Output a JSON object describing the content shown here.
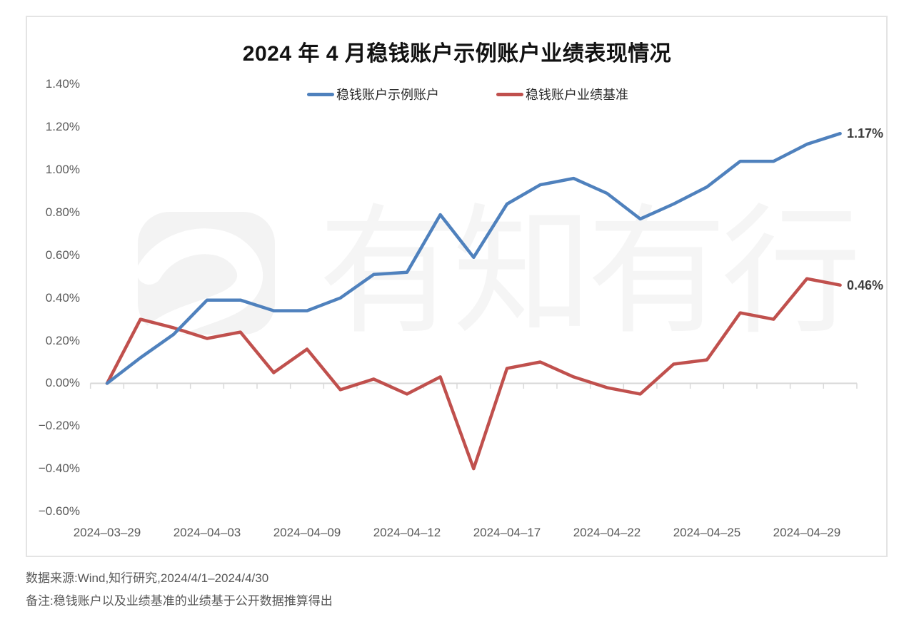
{
  "chart_data": {
    "type": "line",
    "title": "2024 年 4 月稳钱账户示例账户业绩表现情况",
    "xlabel": "",
    "ylabel": "",
    "x": [
      "2024-03-29",
      "2024-04-01",
      "2024-04-02",
      "2024-04-03",
      "2024-04-07",
      "2024-04-08",
      "2024-04-09",
      "2024-04-10",
      "2024-04-11",
      "2024-04-12",
      "2024-04-15",
      "2024-04-16",
      "2024-04-17",
      "2024-04-18",
      "2024-04-19",
      "2024-04-22",
      "2024-04-23",
      "2024-04-24",
      "2024-04-25",
      "2024-04-26",
      "2024-04-28",
      "2024-04-29",
      "2024-04-30"
    ],
    "series": [
      {
        "name": "稳钱账户示例账户",
        "color": "#4f81bd",
        "end_label": "1.17%",
        "values": [
          0.0,
          0.12,
          0.23,
          0.39,
          0.39,
          0.34,
          0.34,
          0.4,
          0.51,
          0.52,
          0.79,
          0.59,
          0.84,
          0.93,
          0.96,
          0.89,
          0.77,
          0.84,
          0.92,
          1.04,
          1.04,
          1.12,
          1.17
        ]
      },
      {
        "name": "稳钱账户业绩基准",
        "color": "#c0504d",
        "end_label": "0.46%",
        "values": [
          0.0,
          0.3,
          0.26,
          0.21,
          0.24,
          0.05,
          0.16,
          -0.03,
          0.02,
          -0.05,
          0.03,
          -0.4,
          0.07,
          0.1,
          0.03,
          -0.02,
          -0.05,
          0.09,
          0.11,
          0.33,
          0.3,
          0.49,
          0.46
        ]
      }
    ],
    "xticks": [
      {
        "label": "2024–03–29",
        "index": 0
      },
      {
        "label": "2024–04–03",
        "index": 3
      },
      {
        "label": "2024–04–09",
        "index": 6
      },
      {
        "label": "2024–04–12",
        "index": 9
      },
      {
        "label": "2024–04–17",
        "index": 12
      },
      {
        "label": "2024–04–22",
        "index": 15
      },
      {
        "label": "2024–04–25",
        "index": 18
      },
      {
        "label": "2024–04–29",
        "index": 21
      }
    ],
    "yticks": [
      {
        "label": "1.40%",
        "value": 1.4
      },
      {
        "label": "1.20%",
        "value": 1.2
      },
      {
        "label": "1.00%",
        "value": 1.0
      },
      {
        "label": "0.80%",
        "value": 0.8
      },
      {
        "label": "0.60%",
        "value": 0.6
      },
      {
        "label": "0.40%",
        "value": 0.4
      },
      {
        "label": "0.20%",
        "value": 0.2
      },
      {
        "label": "0.00%",
        "value": 0.0
      },
      {
        "label": "−0.20%",
        "value": -0.2
      },
      {
        "label": "−0.40%",
        "value": -0.4
      },
      {
        "label": "−0.60%",
        "value": -0.6
      }
    ],
    "ylim": [
      -0.6,
      1.4
    ],
    "grid": "zero-axis-only",
    "legend_position": "top-center"
  },
  "legend": [
    {
      "label": "稳钱账户示例账户",
      "color": "#4f81bd"
    },
    {
      "label": "稳钱账户业绩基准",
      "color": "#c0504d"
    }
  ],
  "watermark": {
    "text": "有知有行"
  },
  "footer": {
    "source": "数据来源:Wind,知行研究,2024/4/1–2024/4/30",
    "note": "备注:稳钱账户以及业绩基准的业绩基于公开数据推算得出"
  }
}
